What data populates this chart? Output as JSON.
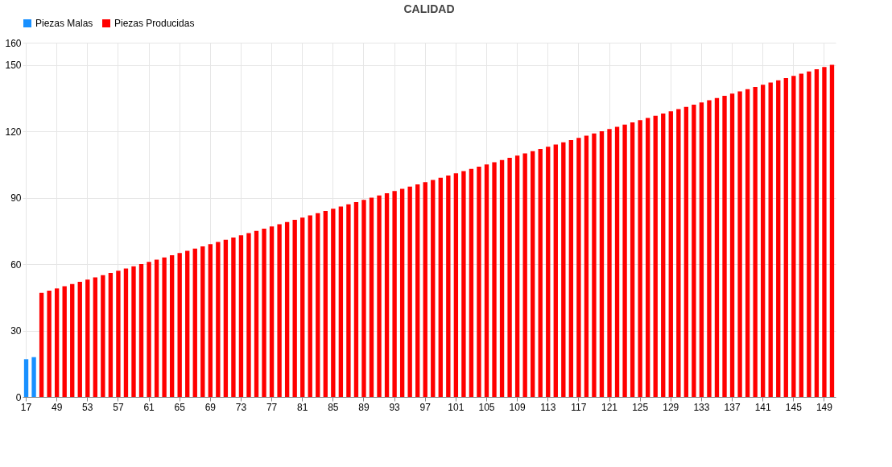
{
  "chart_data": {
    "type": "bar",
    "title": "CALIDAD",
    "legend": "top",
    "grid": true,
    "categories": [
      "17",
      null,
      null,
      null,
      "49",
      null,
      null,
      null,
      "53",
      null,
      null,
      null,
      "57",
      null,
      null,
      null,
      "61",
      null,
      null,
      null,
      "65",
      null,
      null,
      null,
      "69",
      null,
      null,
      null,
      "73",
      null,
      null,
      null,
      "77",
      null,
      null,
      null,
      "81",
      null,
      null,
      null,
      "85",
      null,
      null,
      null,
      "89",
      null,
      null,
      null,
      "93",
      null,
      null,
      null,
      "97",
      null,
      null,
      null,
      "101",
      null,
      null,
      null,
      "105",
      null,
      null,
      null,
      "109",
      null,
      null,
      null,
      "113",
      null,
      null,
      null,
      "117",
      null,
      null,
      null,
      "121",
      null,
      null,
      null,
      "125",
      null,
      null,
      null,
      "129",
      null,
      null,
      null,
      "133",
      null,
      null,
      null,
      "137",
      null,
      null,
      null,
      "141",
      null,
      null,
      null,
      "145",
      null,
      null,
      null,
      "149",
      null
    ],
    "ylim": [
      0,
      160
    ],
    "yticks": [
      0,
      30,
      60,
      90,
      120,
      150,
      160
    ],
    "series": [
      {
        "name": "Piezas Malas",
        "color": "#1890ff",
        "values": [
          17,
          18,
          null,
          null,
          null,
          null,
          null,
          null,
          null,
          null,
          null,
          null,
          null,
          null,
          null,
          null,
          null,
          null,
          null,
          null,
          null,
          null,
          null,
          null,
          null,
          null,
          null,
          null,
          null,
          null,
          null,
          null,
          null,
          null,
          null,
          null,
          null,
          null,
          null,
          null,
          null,
          null,
          null,
          null,
          null,
          null,
          null,
          null,
          null,
          null,
          null,
          null,
          null,
          null,
          null,
          null,
          null,
          null,
          null,
          null,
          null,
          null,
          null,
          null,
          null,
          null,
          null,
          null,
          null,
          null,
          null,
          null,
          null,
          null,
          null,
          null,
          null,
          null,
          null,
          null,
          null,
          null,
          null,
          null,
          null,
          null,
          null,
          null,
          null,
          null,
          null,
          null,
          null,
          null,
          null,
          null,
          null,
          null,
          null,
          null,
          null,
          null,
          null,
          null,
          null,
          null
        ]
      },
      {
        "name": "Piezas Producidas",
        "color": "#ff0000",
        "values": [
          null,
          null,
          47,
          48,
          49,
          50,
          51,
          52,
          53,
          54,
          55,
          56,
          57,
          58,
          59,
          60,
          61,
          62,
          63,
          64,
          65,
          66,
          67,
          68,
          69,
          70,
          71,
          72,
          73,
          74,
          75,
          76,
          77,
          78,
          79,
          80,
          81,
          82,
          83,
          84,
          85,
          86,
          87,
          88,
          89,
          90,
          91,
          92,
          93,
          94,
          95,
          96,
          97,
          98,
          99,
          100,
          101,
          102,
          103,
          104,
          105,
          106,
          107,
          108,
          109,
          110,
          111,
          112,
          113,
          114,
          115,
          116,
          117,
          118,
          119,
          120,
          121,
          122,
          123,
          124,
          125,
          126,
          127,
          128,
          129,
          130,
          131,
          132,
          133,
          134,
          135,
          136,
          137,
          138,
          139,
          140,
          141,
          142,
          143,
          144,
          145,
          146,
          147,
          148,
          149,
          150
        ]
      }
    ]
  }
}
